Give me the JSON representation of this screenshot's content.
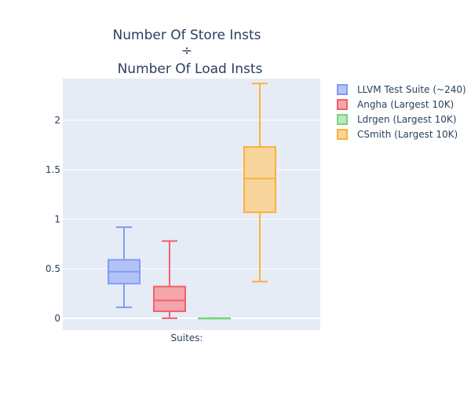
{
  "chart_data": {
    "type": "box",
    "title_lines": [
      "Number Of Store Insts",
      "÷",
      "Number Of Load Insts"
    ],
    "xlabel": "Suites:",
    "ylabel": "",
    "ylim": [
      -0.12,
      2.42
    ],
    "y_ticks": [
      0,
      0.5,
      1,
      1.5,
      2
    ],
    "y_tick_labels": [
      "0",
      "0.5",
      "1",
      "1.5",
      "2"
    ],
    "grid": true,
    "legend_position": "top-right",
    "series": [
      {
        "name": "LLVM Test Suite (~240)",
        "color": "#636efa",
        "stroke": "#7f9df2",
        "fill": "#b3c3f8",
        "min": 0.11,
        "q1": 0.35,
        "median": 0.47,
        "q3": 0.59,
        "max": 0.92
      },
      {
        "name": "Angha (Largest 10K)",
        "color": "#ef553b",
        "stroke": "#f2606a",
        "fill": "#f4a6ab",
        "min": 0.0,
        "q1": 0.07,
        "median": 0.18,
        "q3": 0.32,
        "max": 0.78
      },
      {
        "name": "Ldrgen (Largest 10K)",
        "color": "#00cc96",
        "stroke": "#7ed082",
        "fill": "#b9e8bd",
        "min": 0.0,
        "q1": 0.0,
        "median": 0.0,
        "q3": 0.0,
        "max": 0.0
      },
      {
        "name": "CSmith (Largest 10K)",
        "color": "#ffa15a",
        "stroke": "#fdb03c",
        "fill": "#f8d59c",
        "min": 0.37,
        "q1": 1.07,
        "median": 1.41,
        "q3": 1.73,
        "max": 2.37
      }
    ]
  }
}
